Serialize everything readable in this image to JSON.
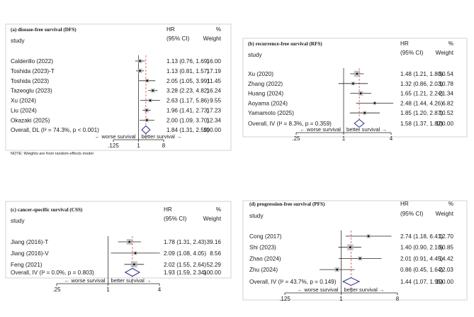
{
  "chart_data": [
    {
      "type": "forest",
      "title": "(a) disease-free survival (DFS)",
      "col_study": "study",
      "col_hr": [
        "HR",
        "(95% CI)"
      ],
      "col_w": [
        "%",
        "Weight"
      ],
      "scale": "log",
      "xticks": [
        "0.125",
        "1",
        "8"
      ],
      "xtick_labels": [
        ".125",
        "1",
        "8"
      ],
      "xlabel_left": "←  worse survival",
      "xlabel_right": "better survival  →",
      "ref_line": 1,
      "overall_line": 1.84,
      "studies": [
        {
          "name": "Calderillo (2022)",
          "hr": 1.13,
          "lo": 0.76,
          "hi": 1.69,
          "text": "1.13 (0.76, 1.69)",
          "weight": "16.00"
        },
        {
          "name": "Toshida (2023)-T",
          "hr": 1.13,
          "lo": 0.81,
          "hi": 1.57,
          "text": "1.13 (0.81, 1.57)",
          "weight": "17.19"
        },
        {
          "name": "Toshida (2023)",
          "hr": 2.05,
          "lo": 1.05,
          "hi": 3.99,
          "text": "2.05 (1.05, 3.99)",
          "weight": "11.45"
        },
        {
          "name": "Tazeoglu (2023)",
          "hr": 3.28,
          "lo": 2.23,
          "hi": 4.82,
          "text": "3.28 (2.23, 4.82)",
          "weight": "16.24"
        },
        {
          "name": "Xu (2024)",
          "hr": 2.63,
          "lo": 1.17,
          "hi": 5.86,
          "text": "2.63 (1.17, 5.86)",
          "weight": "9.55"
        },
        {
          "name": "Liu (2024)",
          "hr": 1.96,
          "lo": 1.41,
          "hi": 2.73,
          "text": "1.96 (1.41, 2.73)",
          "weight": "17.23"
        },
        {
          "name": "Okazaki (2025)",
          "hr": 2.0,
          "lo": 1.09,
          "hi": 3.7,
          "text": "2.00 (1.09, 3.70)",
          "weight": "12.34"
        }
      ],
      "overall": {
        "label": "Overall, DL (I² = 74.3%, p < 0.001)",
        "hr": 1.84,
        "lo": 1.31,
        "hi": 2.59,
        "text": "1.84 (1.31, 2.59)",
        "weight": "100.00"
      },
      "note": "NOTE: Weights are from random-effects model"
    },
    {
      "type": "forest",
      "title": "(b) recurrence-free survival (RFS)",
      "col_study": "study",
      "col_hr": [
        "HR",
        "(95% CI)"
      ],
      "col_w": [
        "%",
        "Weight"
      ],
      "scale": "log",
      "xticks": [
        "0.25",
        "1",
        "4"
      ],
      "xtick_labels": [
        ".25",
        "1",
        "4"
      ],
      "xlabel_left": "←  worse survival",
      "xlabel_right": "better survival  →",
      "ref_line": 1,
      "overall_line": 1.58,
      "studies": [
        {
          "name": "Xu (2020)",
          "hr": 1.48,
          "lo": 1.21,
          "hi": 1.8,
          "text": "1.48 (1.21, 1.80)",
          "weight": "50.54"
        },
        {
          "name": "Zhang (2022)",
          "hr": 1.32,
          "lo": 0.86,
          "hi": 2.03,
          "text": "1.32 (0.86, 2.03)",
          "weight": "10.78"
        },
        {
          "name": "Huang (2024)",
          "hr": 1.65,
          "lo": 1.21,
          "hi": 2.24,
          "text": "1.65 (1.21, 2.24)",
          "weight": "21.34"
        },
        {
          "name": "Aoyama (2024)",
          "hr": 2.48,
          "lo": 1.44,
          "hi": 4.26,
          "text": "2.48 (1.44, 4.26)",
          "weight": "6.82"
        },
        {
          "name": "Yamamoto (2025)",
          "hr": 1.85,
          "lo": 1.2,
          "hi": 2.87,
          "text": "1.85 (1.20, 2.87)",
          "weight": "10.52"
        }
      ],
      "overall": {
        "label": "Overall, IV (I² = 8.3%, p = 0.359)",
        "hr": 1.58,
        "lo": 1.37,
        "hi": 1.82,
        "text": "1.58 (1.37, 1.82)",
        "weight": "100.00"
      }
    },
    {
      "type": "forest",
      "title": "(c) cancer-specific survival (CSS)",
      "col_study": "study",
      "col_hr": [
        "HR",
        "(95% CI)"
      ],
      "col_w": [
        "%",
        "Weight"
      ],
      "scale": "log",
      "xticks": [
        "0.25",
        "1",
        "4"
      ],
      "xtick_labels": [
        ".25",
        "1",
        "4"
      ],
      "xlabel_left": "←  worse survival",
      "xlabel_right": "better survival  →",
      "ref_line": 1,
      "overall_line": 1.93,
      "studies": [
        {
          "name": "Jiang (2016)-T",
          "hr": 1.78,
          "lo": 1.31,
          "hi": 2.43,
          "text": "1.78 (1.31, 2.43)",
          "weight": "39.16"
        },
        {
          "name": "Jiang (2016)-V",
          "hr": 2.09,
          "lo": 1.08,
          "hi": 4.05,
          "text": "2.09 (1.08, 4.05)",
          "weight": "8.56"
        },
        {
          "name": "Feng (2021)",
          "hr": 2.02,
          "lo": 1.55,
          "hi": 2.64,
          "text": "2.02 (1.55, 2.64)",
          "weight": "52.29"
        }
      ],
      "overall": {
        "label": "Overall, IV (I² = 0.0%, p = 0.803)",
        "hr": 1.93,
        "lo": 1.59,
        "hi": 2.34,
        "text": "1.93 (1.59, 2.34)",
        "weight": "100.00"
      }
    },
    {
      "type": "forest",
      "title": "(d) progression-free survival (PFS)",
      "col_study": "study",
      "col_hr": [
        "HR",
        "(95% CI)"
      ],
      "col_w": [
        "%",
        "Weight"
      ],
      "scale": "log",
      "xticks": [
        "0.125",
        "1",
        "8"
      ],
      "xtick_labels": [
        ".125",
        "1",
        "8"
      ],
      "xlabel_left": "←  worse survival",
      "xlabel_right": "better survival  →",
      "ref_line": 1,
      "overall_line": 1.44,
      "studies": [
        {
          "name": "Cong (2017)",
          "hr": 2.74,
          "lo": 1.18,
          "hi": 6.41,
          "text": "2.74 (1.18, 6.41)",
          "weight": "12.70"
        },
        {
          "name": "Shi (2023)",
          "hr": 1.4,
          "lo": 0.9,
          "hi": 2.1,
          "text": "1.40 (0.90, 2.10)",
          "weight": "50.85"
        },
        {
          "name": "Zhao (2024)",
          "hr": 2.01,
          "lo": 0.91,
          "hi": 4.45,
          "text": "2.01 (0.91, 4.45)",
          "weight": "14.42"
        },
        {
          "name": "Zhu (2024)",
          "hr": 0.86,
          "lo": 0.45,
          "hi": 1.64,
          "text": "0.86 (0.45, 1.64)",
          "weight": "22.03"
        }
      ],
      "overall": {
        "label": "Overall, IV (I² = 43.7%, p = 0.149)",
        "hr": 1.44,
        "lo": 1.07,
        "hi": 1.95,
        "text": "1.44 (1.07, 1.95)",
        "weight": "100.00"
      }
    }
  ]
}
